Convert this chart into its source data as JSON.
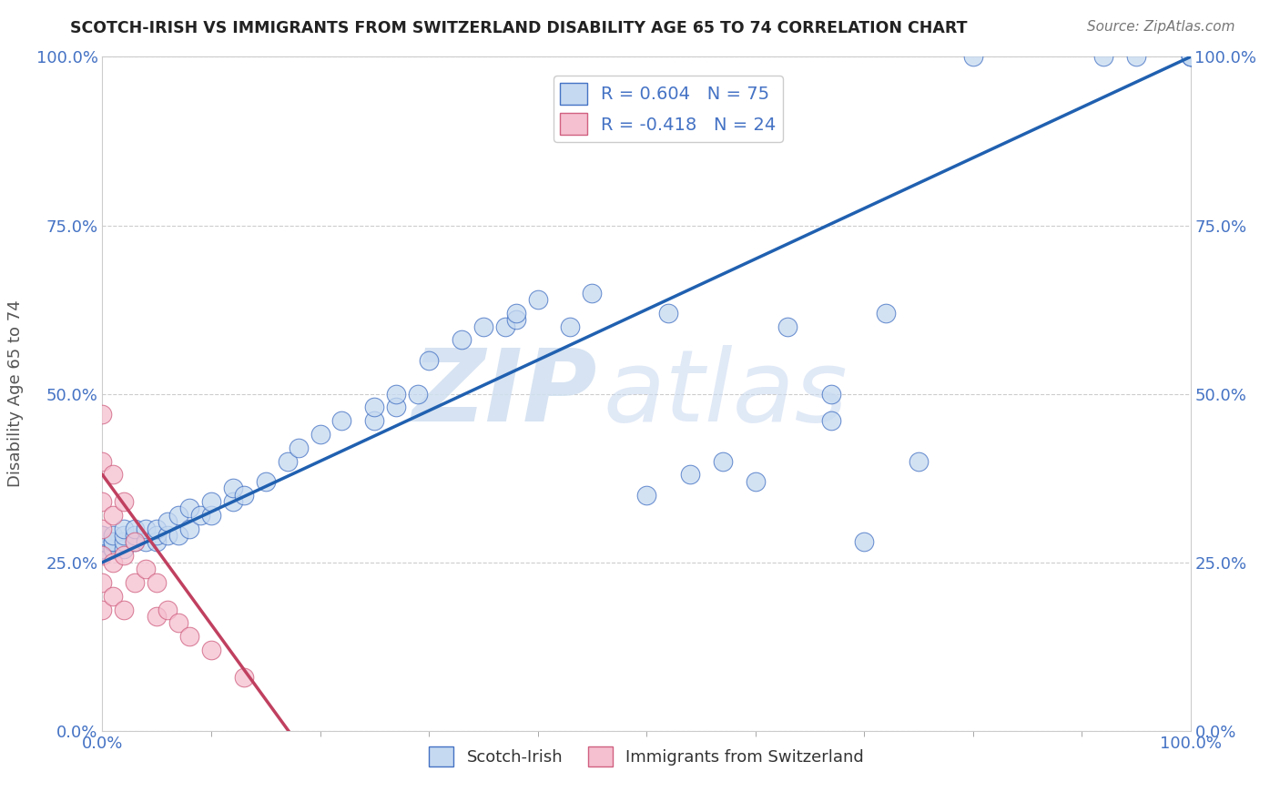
{
  "title": "SCOTCH-IRISH VS IMMIGRANTS FROM SWITZERLAND DISABILITY AGE 65 TO 74 CORRELATION CHART",
  "source": "Source: ZipAtlas.com",
  "ylabel": "Disability Age 65 to 74",
  "x_tick_labels": [
    "0.0%",
    "100.0%"
  ],
  "y_tick_labels": [
    "0.0%",
    "25.0%",
    "50.0%",
    "75.0%",
    "100.0%"
  ],
  "y_tick_values": [
    0.0,
    0.25,
    0.5,
    0.75,
    1.0
  ],
  "xlim": [
    0.0,
    1.0
  ],
  "ylim": [
    0.0,
    1.0
  ],
  "legend_label1": "Scotch-Irish",
  "legend_label2": "Immigrants from Switzerland",
  "R1": 0.604,
  "N1": 75,
  "R2": -0.418,
  "N2": 24,
  "blue_fill": "#c5d9f0",
  "blue_edge": "#4472c4",
  "blue_line": "#2060b0",
  "pink_fill": "#f5c0d0",
  "pink_edge": "#d06080",
  "pink_line": "#c04060",
  "background_color": "#ffffff",
  "grid_color": "#cccccc",
  "blue_x": [
    0.0,
    0.0,
    0.0,
    0.0,
    0.0,
    0.0,
    0.0,
    0.0,
    0.0,
    0.0,
    0.01,
    0.01,
    0.01,
    0.01,
    0.01,
    0.02,
    0.02,
    0.02,
    0.02,
    0.03,
    0.03,
    0.03,
    0.04,
    0.04,
    0.05,
    0.05,
    0.05,
    0.06,
    0.06,
    0.07,
    0.07,
    0.08,
    0.08,
    0.09,
    0.1,
    0.1,
    0.12,
    0.12,
    0.13,
    0.15,
    0.17,
    0.18,
    0.2,
    0.22,
    0.25,
    0.25,
    0.27,
    0.27,
    0.29,
    0.3,
    0.33,
    0.35,
    0.37,
    0.38,
    0.38,
    0.4,
    0.43,
    0.45,
    0.5,
    0.52,
    0.54,
    0.57,
    0.6,
    0.63,
    0.67,
    0.67,
    0.7,
    0.72,
    0.75,
    0.8,
    0.92,
    0.95,
    1.0,
    1.0,
    1.0
  ],
  "blue_y": [
    0.27,
    0.27,
    0.27,
    0.27,
    0.28,
    0.28,
    0.28,
    0.28,
    0.29,
    0.29,
    0.27,
    0.27,
    0.28,
    0.28,
    0.29,
    0.27,
    0.28,
    0.29,
    0.3,
    0.28,
    0.29,
    0.3,
    0.28,
    0.3,
    0.28,
    0.29,
    0.3,
    0.29,
    0.31,
    0.29,
    0.32,
    0.3,
    0.33,
    0.32,
    0.32,
    0.34,
    0.34,
    0.36,
    0.35,
    0.37,
    0.4,
    0.42,
    0.44,
    0.46,
    0.46,
    0.48,
    0.48,
    0.5,
    0.5,
    0.55,
    0.58,
    0.6,
    0.6,
    0.61,
    0.62,
    0.64,
    0.6,
    0.65,
    0.35,
    0.62,
    0.38,
    0.4,
    0.37,
    0.6,
    0.46,
    0.5,
    0.28,
    0.62,
    0.4,
    1.0,
    1.0,
    1.0,
    1.0,
    1.0,
    1.0
  ],
  "blue_line_x": [
    0.0,
    1.0
  ],
  "blue_line_y": [
    0.25,
    1.0
  ],
  "pink_x": [
    0.0,
    0.0,
    0.0,
    0.0,
    0.0,
    0.0,
    0.0,
    0.01,
    0.01,
    0.01,
    0.01,
    0.02,
    0.02,
    0.02,
    0.03,
    0.03,
    0.04,
    0.05,
    0.05,
    0.06,
    0.07,
    0.08,
    0.1,
    0.13
  ],
  "pink_y": [
    0.47,
    0.4,
    0.34,
    0.3,
    0.26,
    0.22,
    0.18,
    0.38,
    0.32,
    0.25,
    0.2,
    0.34,
    0.26,
    0.18,
    0.28,
    0.22,
    0.24,
    0.22,
    0.17,
    0.18,
    0.16,
    0.14,
    0.12,
    0.08
  ],
  "pink_line_x": [
    0.0,
    0.18
  ],
  "pink_line_y": [
    0.38,
    -0.02
  ]
}
